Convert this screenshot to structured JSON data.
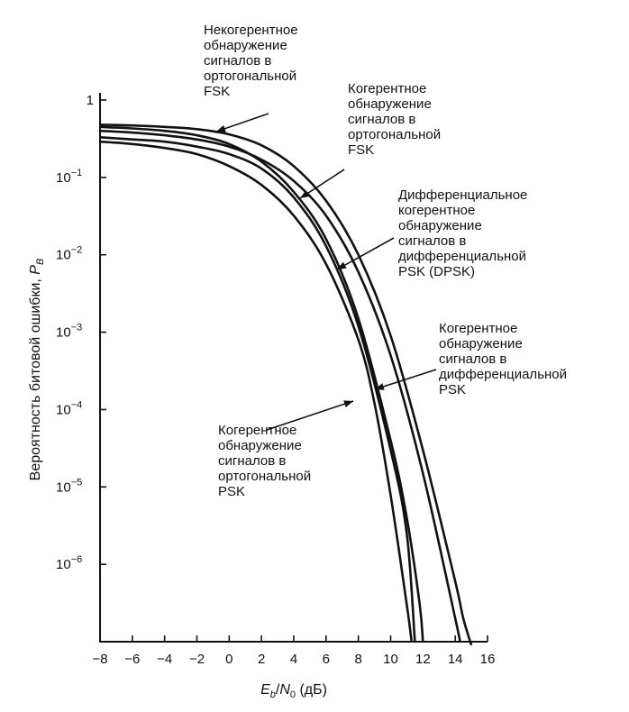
{
  "chart_data": {
    "type": "line",
    "xlabel": "E_b/N_0 (дБ)",
    "ylabel": "Вероятность битовой ошибки, P_B",
    "xlim": [
      -8,
      16
    ],
    "ylim_log10": [
      -7,
      0
    ],
    "y_scale": "log",
    "x_ticks": [
      -8,
      -6,
      -4,
      -2,
      0,
      2,
      4,
      6,
      8,
      10,
      12,
      14,
      16
    ],
    "y_ticks": [
      {
        "exp": 0,
        "label": "1"
      },
      {
        "exp": -1,
        "label": "10",
        "sup": "−1"
      },
      {
        "exp": -2,
        "label": "10",
        "sup": "−2"
      },
      {
        "exp": -3,
        "label": "10",
        "sup": "−3"
      },
      {
        "exp": -4,
        "label": "10",
        "sup": "−4"
      },
      {
        "exp": -5,
        "label": "10",
        "sup": "−5"
      },
      {
        "exp": -6,
        "label": "10",
        "sup": "−6"
      }
    ],
    "series": [
      {
        "x": [
          -8,
          -6,
          -4,
          -2,
          0,
          2,
          4,
          6,
          8,
          10,
          12,
          14,
          14.5,
          15
        ],
        "y": [
          0.48,
          0.47,
          0.45,
          0.42,
          0.36,
          0.26,
          0.14,
          0.05,
          0.01,
          0.0009,
          3e-05,
          6e-07,
          2e-07,
          9e-08
        ]
      },
      {
        "x": [
          -8,
          -6,
          -4,
          -2,
          0,
          2,
          4,
          6,
          8,
          10,
          12,
          14,
          14.3
        ],
        "y": [
          0.4,
          0.38,
          0.35,
          0.31,
          0.25,
          0.17,
          0.09,
          0.032,
          0.006,
          0.0005,
          1.5e-05,
          2e-07,
          1e-07
        ]
      },
      {
        "x": [
          -8,
          -6,
          -4,
          -2,
          0,
          2,
          4,
          6,
          8,
          10,
          11,
          11.8,
          12
        ],
        "y": [
          0.45,
          0.43,
          0.4,
          0.35,
          0.27,
          0.16,
          0.065,
          0.016,
          0.0015,
          4e-05,
          4e-06,
          3e-07,
          1e-07
        ]
      },
      {
        "x": [
          -8,
          -6,
          -4,
          -2,
          0,
          2,
          4,
          6,
          8,
          10,
          11,
          11.5
        ],
        "y": [
          0.33,
          0.31,
          0.29,
          0.25,
          0.2,
          0.13,
          0.055,
          0.013,
          0.0012,
          3e-05,
          2.5e-06,
          1e-07
        ]
      },
      {
        "x": [
          -8,
          -6,
          -4,
          -2,
          0,
          2,
          4,
          6,
          8,
          9,
          10,
          11,
          11.3
        ],
        "y": [
          0.29,
          0.27,
          0.24,
          0.2,
          0.14,
          0.08,
          0.032,
          0.0076,
          0.0008,
          0.00012,
          7.8e-06,
          3e-07,
          1e-07
        ]
      }
    ],
    "annotations": [
      {
        "lines": [
          "Некогерентное",
          "обнаружение",
          "сигналов в",
          "ортогональной",
          "FSK"
        ]
      },
      {
        "lines": [
          "Когерентное",
          "обнаружение",
          "сигналов в",
          "ортогональной",
          "FSK"
        ]
      },
      {
        "lines": [
          "Дифференциальное",
          "когерентное",
          "обнаружение",
          "сигналов в",
          "дифференциальной",
          "PSK (DPSK)"
        ]
      },
      {
        "lines": [
          "Когерентное",
          "обнаружение",
          "сигналов в",
          "дифференциальной",
          "PSK"
        ]
      },
      {
        "lines": [
          "Когерентное",
          "обнаружение",
          "сигналов в",
          "ортогональной",
          "PSK"
        ]
      }
    ]
  }
}
